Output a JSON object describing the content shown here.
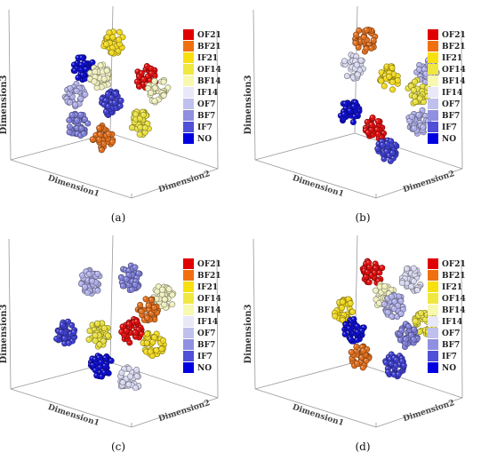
{
  "figure": {
    "legend_labels": [
      "OF21",
      "BF21",
      "IF21",
      "OF14",
      "BF14",
      "IF14",
      "OF7",
      "BF7",
      "IF7",
      "NO"
    ],
    "legend_colors": [
      "#e00000",
      "#f07010",
      "#f8e010",
      "#f0e840",
      "#f8f8b0",
      "#e8e8f8",
      "#c0c0ee",
      "#9090e0",
      "#5050d8",
      "#0000e0"
    ],
    "class_colors": {
      "OF21": "#e01010",
      "BF21": "#e07020",
      "IF21": "#f0d820",
      "OF14": "#e8e040",
      "BF14": "#f0f0c0",
      "IF14": "#d8d8f0",
      "OF7": "#b0b0e8",
      "BF7": "#8080d8",
      "IF7": "#4040d0",
      "NO": "#1010d0"
    },
    "panels": [
      {
        "caption": "(a)",
        "ylabel": "Dimension3",
        "xlabel": "Dimension1",
        "zlabel": "Dimension2",
        "chart_data": {
          "type": "scatter",
          "title": "",
          "series": [
            {
              "name": "IF21",
              "x": 127,
              "y": 47
            },
            {
              "name": "NO",
              "x": 94,
              "y": 76
            },
            {
              "name": "BF14",
              "x": 113,
              "y": 86
            },
            {
              "name": "OF21",
              "x": 165,
              "y": 88
            },
            {
              "name": "BF14",
              "x": 178,
              "y": 102
            },
            {
              "name": "OF7",
              "x": 84,
              "y": 106
            },
            {
              "name": "IF7",
              "x": 125,
              "y": 116
            },
            {
              "name": "BF7",
              "x": 87,
              "y": 141
            },
            {
              "name": "OF14",
              "x": 159,
              "y": 138
            },
            {
              "name": "BF21",
              "x": 116,
              "y": 155
            }
          ]
        }
      },
      {
        "caption": "(b)",
        "ylabel": "Dimension3",
        "xlabel": "Dimension1",
        "zlabel": "Dimension2",
        "chart_data": {
          "type": "scatter",
          "title": "",
          "series": [
            {
              "name": "BF21",
              "x": 411,
              "y": 45
            },
            {
              "name": "IF14",
              "x": 397,
              "y": 75
            },
            {
              "name": "OF7",
              "x": 480,
              "y": 80
            },
            {
              "name": "IF21",
              "x": 438,
              "y": 88
            },
            {
              "name": "OF14",
              "x": 470,
              "y": 104
            },
            {
              "name": "NO",
              "x": 393,
              "y": 125
            },
            {
              "name": "OF7",
              "x": 470,
              "y": 137
            },
            {
              "name": "OF21",
              "x": 422,
              "y": 146
            },
            {
              "name": "IF7",
              "x": 435,
              "y": 170
            }
          ]
        }
      },
      {
        "caption": "(c)",
        "ylabel": "Dimension3",
        "xlabel": "Dimension1",
        "zlabel": "Dimension2",
        "chart_data": {
          "type": "scatter",
          "title": "",
          "series": [
            {
              "name": "OF7",
              "x": 102,
              "y": 318
            },
            {
              "name": "BF7",
              "x": 147,
              "y": 313
            },
            {
              "name": "BF14",
              "x": 184,
              "y": 335
            },
            {
              "name": "BF21",
              "x": 167,
              "y": 349
            },
            {
              "name": "IF7",
              "x": 73,
              "y": 375
            },
            {
              "name": "OF21",
              "x": 148,
              "y": 373
            },
            {
              "name": "OF14",
              "x": 111,
              "y": 377
            },
            {
              "name": "IF21",
              "x": 173,
              "y": 387
            },
            {
              "name": "NO",
              "x": 114,
              "y": 411
            },
            {
              "name": "IF14",
              "x": 146,
              "y": 427
            }
          ]
        }
      },
      {
        "caption": "(d)",
        "ylabel": "Dimension3",
        "xlabel": "Dimension1",
        "zlabel": "Dimension2",
        "chart_data": {
          "type": "scatter",
          "title": "",
          "series": [
            {
              "name": "OF21",
              "x": 419,
              "y": 306
            },
            {
              "name": "IF14",
              "x": 463,
              "y": 315
            },
            {
              "name": "BF14",
              "x": 432,
              "y": 333
            },
            {
              "name": "OF7",
              "x": 444,
              "y": 345
            },
            {
              "name": "IF21",
              "x": 387,
              "y": 349
            },
            {
              "name": "OF14",
              "x": 478,
              "y": 364
            },
            {
              "name": "NO",
              "x": 398,
              "y": 371
            },
            {
              "name": "BF7",
              "x": 458,
              "y": 377
            },
            {
              "name": "BF21",
              "x": 405,
              "y": 402
            },
            {
              "name": "IF7",
              "x": 443,
              "y": 411
            }
          ]
        }
      }
    ]
  }
}
